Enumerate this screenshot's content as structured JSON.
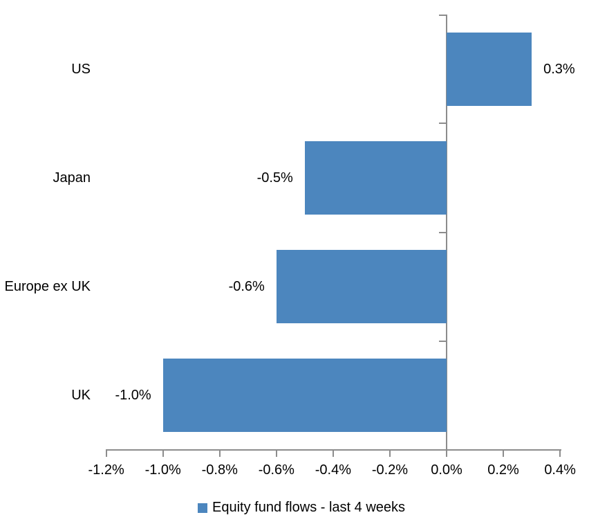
{
  "chart_data": {
    "type": "bar",
    "orientation": "horizontal",
    "categories": [
      "US",
      "Japan",
      "Europe ex UK",
      "UK"
    ],
    "values": [
      0.3,
      -0.5,
      -0.6,
      -1.0
    ],
    "data_labels": [
      "0.3%",
      "-0.5%",
      "-0.6%",
      "-1.0%"
    ],
    "series_name": "Equity fund flows - last 4 weeks",
    "x_ticks": [
      "-1.2%",
      "-1.0%",
      "-0.8%",
      "-0.6%",
      "-0.4%",
      "-0.2%",
      "0.0%",
      "0.2%",
      "0.4%"
    ],
    "x_tick_values": [
      -1.2,
      -1.0,
      -0.8,
      -0.6,
      -0.4,
      -0.2,
      0.0,
      0.2,
      0.4
    ],
    "xlim": [
      -1.2,
      0.4
    ],
    "grid": false,
    "legend_position": "bottom",
    "bar_color": "#4C86BE",
    "axis_color": "#8C8C8C",
    "text_color": "#000000"
  }
}
